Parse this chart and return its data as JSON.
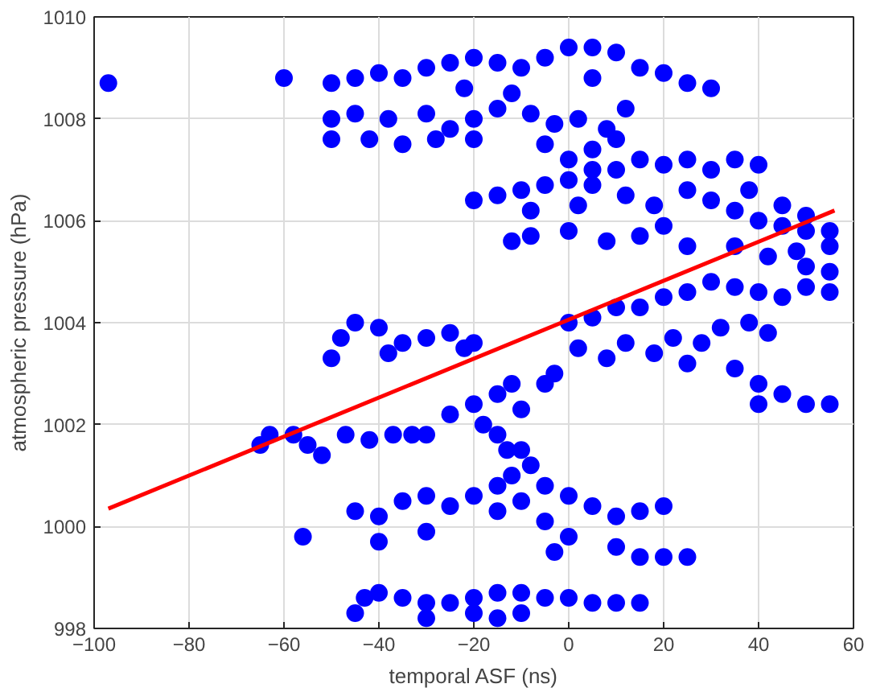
{
  "chart_data": {
    "type": "scatter",
    "xlabel": "temporal ASF (ns)",
    "ylabel": "atmospheric pressure (hPa)",
    "xlim": [
      -100,
      60
    ],
    "xticks": [
      -100,
      -80,
      -60,
      -40,
      -20,
      0,
      20,
      40,
      60
    ],
    "ylim": [
      998,
      1010
    ],
    "yticks": [
      998,
      1000,
      1002,
      1004,
      1006,
      1008,
      1010
    ],
    "grid": true,
    "series": [
      {
        "color": "#0000ff",
        "marker": "circle",
        "x": [
          -97,
          -60,
          -50,
          -45,
          -40,
          -35,
          -30,
          -25,
          -20,
          -15,
          -10,
          -5,
          0,
          5,
          10,
          15,
          20,
          25,
          30,
          -22,
          -12,
          5,
          -50,
          -45,
          -38,
          -30,
          -25,
          -20,
          -15,
          -8,
          -3,
          2,
          8,
          12,
          -50,
          -42,
          -35,
          -28,
          -20,
          -5,
          5,
          10,
          -20,
          -15,
          -10,
          -5,
          0,
          5,
          10,
          15,
          20,
          25,
          30,
          35,
          40,
          0,
          5,
          -8,
          2,
          12,
          18,
          25,
          30,
          35,
          40,
          45,
          50,
          55,
          45,
          50,
          38,
          -12,
          -8,
          0,
          8,
          15,
          20,
          25,
          35,
          42,
          48,
          55,
          55,
          50,
          0,
          5,
          10,
          15,
          20,
          25,
          30,
          35,
          40,
          45,
          50,
          55,
          2,
          8,
          12,
          18,
          22,
          28,
          32,
          38,
          42,
          25,
          35,
          40,
          45,
          50,
          55,
          40,
          -50,
          -48,
          -45,
          -40,
          -38,
          -35,
          -30,
          -25,
          -22,
          -20,
          -25,
          -20,
          -15,
          -12,
          -10,
          -5,
          -18,
          -3,
          -65,
          -63,
          -58,
          -55,
          -52,
          -47,
          -42,
          -37,
          -33,
          -30,
          -15,
          -13,
          -10,
          -8,
          -12,
          -15,
          -5,
          -10,
          0,
          5,
          10,
          15,
          20,
          -20,
          -30,
          -35,
          -40,
          -45,
          -25,
          -5,
          -15,
          -56,
          -40,
          -30,
          0,
          10,
          15,
          20,
          25,
          -3,
          -45,
          -43,
          -40,
          -35,
          -30,
          -25,
          -20,
          -15,
          -10,
          -5,
          0,
          5,
          10,
          15,
          -30,
          -20,
          -10,
          -15
        ],
        "values": [
          1008.7,
          1008.8,
          1008.7,
          1008.8,
          1008.9,
          1008.8,
          1009,
          1009.1,
          1009.2,
          1009.1,
          1009,
          1009.2,
          1009.4,
          1009.4,
          1009.3,
          1009,
          1008.9,
          1008.7,
          1008.6,
          1008.6,
          1008.5,
          1008.8,
          1008,
          1008.1,
          1008,
          1008.1,
          1007.8,
          1008,
          1008.2,
          1008.1,
          1007.9,
          1008,
          1007.8,
          1008.2,
          1007.6,
          1007.6,
          1007.5,
          1007.6,
          1007.6,
          1007.5,
          1007.4,
          1007.6,
          1006.4,
          1006.5,
          1006.6,
          1006.7,
          1006.8,
          1006.7,
          1007,
          1007.2,
          1007.1,
          1007.2,
          1007,
          1007.2,
          1007.1,
          1007.2,
          1007,
          1006.2,
          1006.3,
          1006.5,
          1006.3,
          1006.6,
          1006.4,
          1006.2,
          1006,
          1005.9,
          1005.8,
          1005.8,
          1006.3,
          1006.1,
          1006.6,
          1005.6,
          1005.7,
          1005.8,
          1005.6,
          1005.7,
          1005.9,
          1005.5,
          1005.5,
          1005.3,
          1005.4,
          1005.5,
          1005,
          1005.1,
          1004,
          1004.1,
          1004.3,
          1004.3,
          1004.5,
          1004.6,
          1004.8,
          1004.7,
          1004.6,
          1004.5,
          1004.7,
          1004.6,
          1003.5,
          1003.3,
          1003.6,
          1003.4,
          1003.7,
          1003.6,
          1003.9,
          1004,
          1003.8,
          1003.2,
          1003.1,
          1002.8,
          1002.6,
          1002.4,
          1002.4,
          1002.4,
          1003.3,
          1003.7,
          1004,
          1003.9,
          1003.4,
          1003.6,
          1003.7,
          1003.8,
          1003.5,
          1003.6,
          1002.2,
          1002.4,
          1002.6,
          1002.8,
          1002.3,
          1002.8,
          1002,
          1003,
          1001.6,
          1001.8,
          1001.8,
          1001.6,
          1001.4,
          1001.8,
          1001.7,
          1001.8,
          1001.8,
          1001.8,
          1001.8,
          1001.5,
          1001.5,
          1001.2,
          1001,
          1000.8,
          1000.8,
          1000.5,
          1000.6,
          1000.4,
          1000.2,
          1000.3,
          1000.4,
          1000.6,
          1000.6,
          1000.5,
          1000.2,
          1000.3,
          1000.4,
          1000.1,
          1000.3,
          999.8,
          999.7,
          999.9,
          999.8,
          999.6,
          999.4,
          999.4,
          999.4,
          999.5,
          998.3,
          998.6,
          998.7,
          998.6,
          998.5,
          998.5,
          998.6,
          998.7,
          998.7,
          998.6,
          998.6,
          998.5,
          998.5,
          998.5,
          998.2,
          998.3,
          998.3,
          998.2
        ]
      },
      {
        "type": "line",
        "color": "#ff0000",
        "x": [
          -97,
          56
        ],
        "values": [
          1000.35,
          1006.2
        ]
      }
    ]
  }
}
